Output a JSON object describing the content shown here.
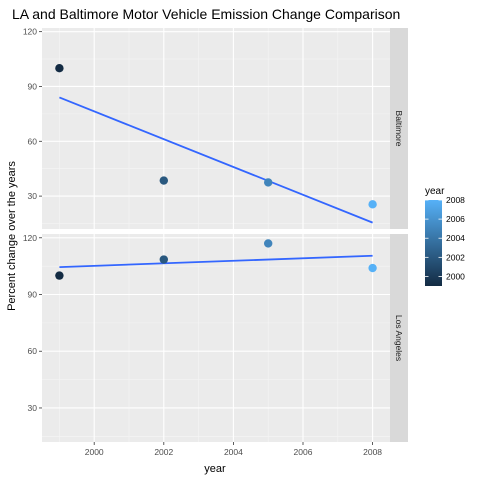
{
  "chart_data": {
    "type": "scatter",
    "title": "LA and Baltimore Motor Vehicle Emission Change Comparison",
    "xlabel": "year",
    "ylabel": "Percent change over the years",
    "x_ticks": [
      2000,
      2002,
      2004,
      2006,
      2008
    ],
    "y_ticks": [
      30,
      60,
      90,
      120
    ],
    "xlim": [
      1998.5,
      2008.5
    ],
    "ylim": [
      12,
      122
    ],
    "grid": true,
    "legend": {
      "title": "year",
      "position": "right",
      "labels": [
        "2008",
        "2006",
        "2004",
        "2002",
        "2000"
      ],
      "low_color": "#132B43",
      "high_color": "#56B1F7"
    },
    "colors": {
      "panel_bg": "#EBEBEB",
      "strip_bg": "#D9D9D9",
      "trend_line": "#3366FF"
    },
    "facets": [
      {
        "label": "Baltimore",
        "x": [
          1999,
          2002,
          2005,
          2008
        ],
        "y": [
          100,
          38.5,
          37.5,
          25.5
        ],
        "trend": [
          {
            "x": 1999,
            "y": 84
          },
          {
            "x": 2008,
            "y": 15.5
          }
        ]
      },
      {
        "label": "Los Angeles",
        "x": [
          1999,
          2002,
          2005,
          2008
        ],
        "y": [
          100,
          108.5,
          117,
          104
        ],
        "trend": [
          {
            "x": 1999,
            "y": 104.5
          },
          {
            "x": 2008,
            "y": 110.5
          }
        ]
      }
    ]
  }
}
